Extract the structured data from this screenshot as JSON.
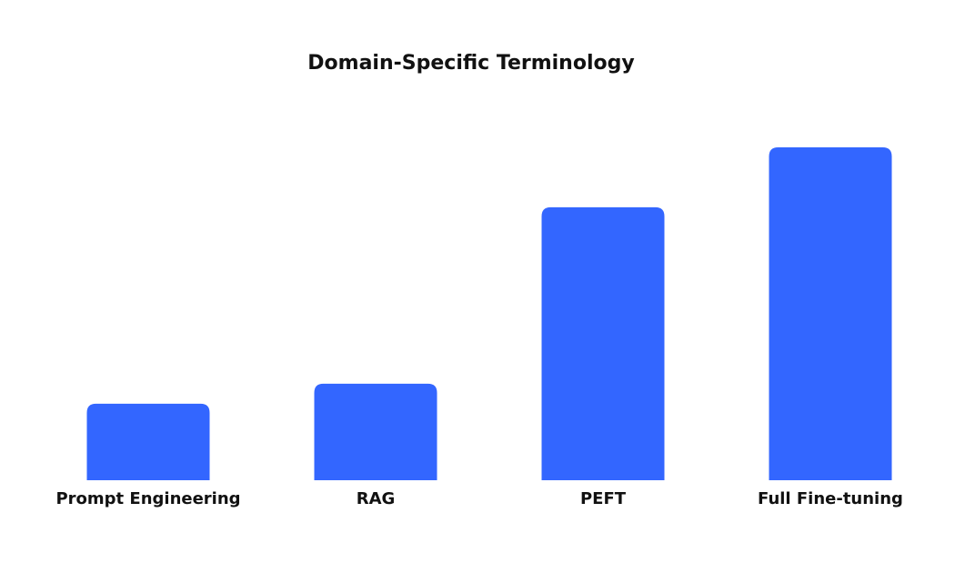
{
  "chart_data": {
    "type": "bar",
    "title": "Domain-Specific Terminology",
    "categories": [
      "Prompt Engineering",
      "RAG",
      "PEFT",
      "Full Fine-tuning"
    ],
    "values": [
      23,
      29,
      82,
      100
    ],
    "color": "#3366ff",
    "ylim": [
      0,
      100
    ]
  }
}
